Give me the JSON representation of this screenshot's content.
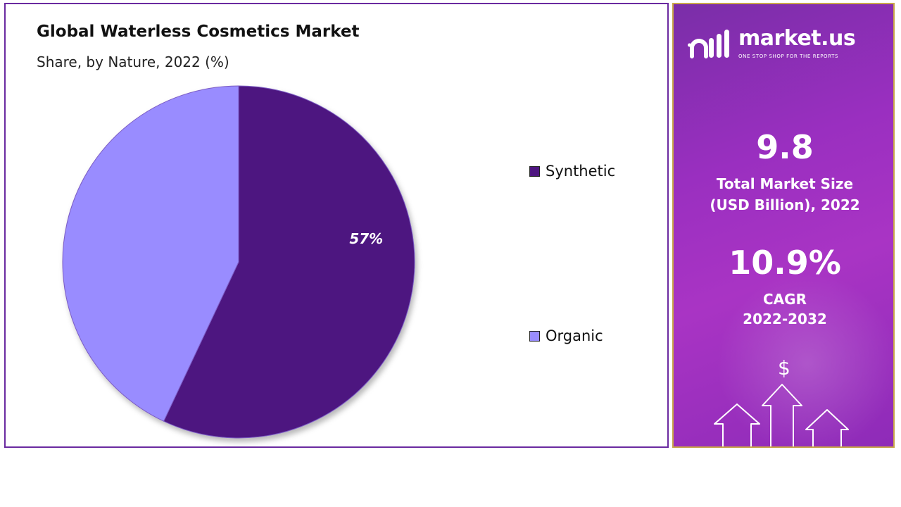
{
  "chart": {
    "title": "Global Waterless Cosmetics Market",
    "subtitle": "Share, by Nature, 2022 (%)"
  },
  "chart_data": {
    "type": "pie",
    "title": "Global Waterless Cosmetics Market",
    "subtitle": "Share, by Nature, 2022 (%)",
    "categories": [
      "Synthetic",
      "Organic"
    ],
    "values": [
      57,
      43
    ],
    "colors": [
      "#4e1580",
      "#998cff"
    ],
    "data_labels": [
      "57%",
      ""
    ],
    "legend_position": "right"
  },
  "promo": {
    "brand_name": "market.us",
    "tagline": "ONE STOP SHOP FOR THE REPORTS",
    "market_size_value": "9.8",
    "market_size_label_line1": "Total Market Size",
    "market_size_label_line2": "(USD Billion), 2022",
    "cagr_value": "10.9%",
    "cagr_label": "CAGR",
    "cagr_period": "2022-2032",
    "currency_symbol": "$",
    "accent_border": "#c9a64a",
    "background_color": "#9a2fc0"
  }
}
